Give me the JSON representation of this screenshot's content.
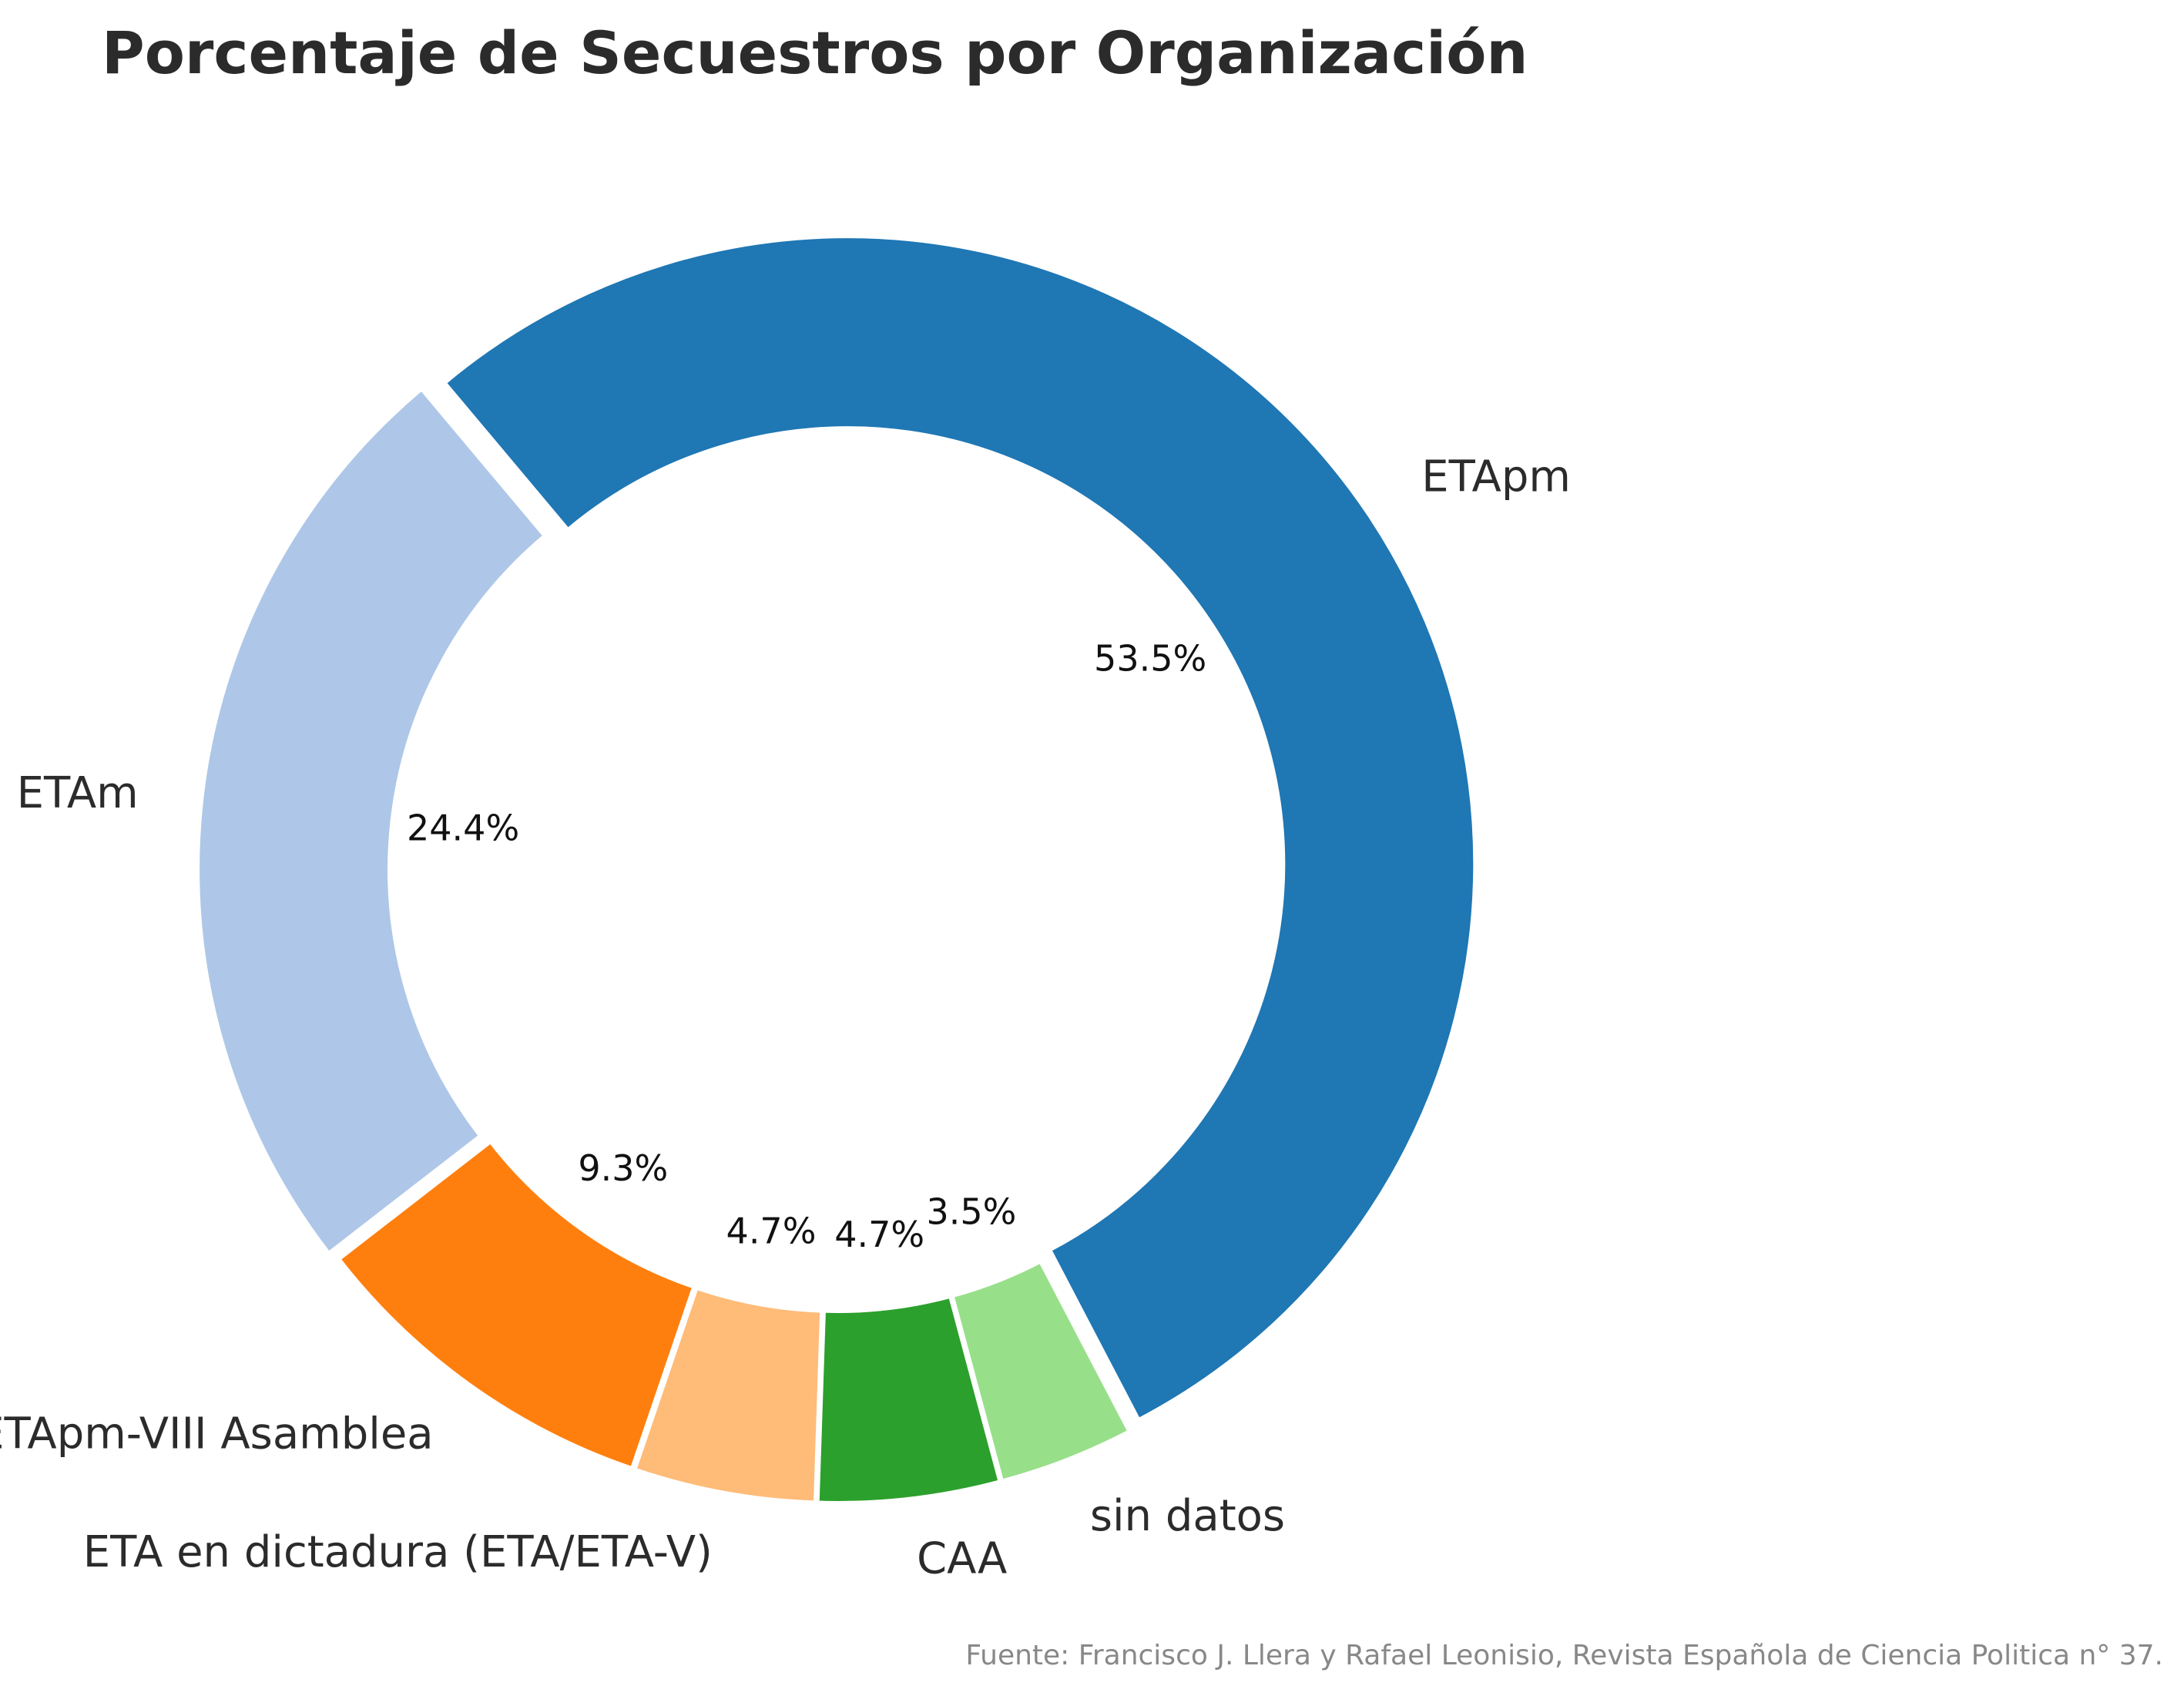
{
  "chart_data": {
    "type": "pie",
    "variant": "donut",
    "title": "Porcentaje de Secuestros por Organización",
    "source": "Fuente: Francisco J. Llera y Rafael Leonisio, Revista Española de Ciencia Politica n° 37.",
    "slices": [
      {
        "label": "ETAm",
        "value": 24.4,
        "pct_label": "24.4%",
        "color": "#aec7e8"
      },
      {
        "label": "ETApm-VIII Asamblea",
        "value": 9.3,
        "pct_label": "9.3%",
        "color": "#ff7f0e"
      },
      {
        "label": "ETA en dictadura (ETA/ETA-V)",
        "value": 4.7,
        "pct_label": "4.7%",
        "color": "#ffbb78"
      },
      {
        "label": "CAA",
        "value": 4.7,
        "pct_label": "4.7%",
        "color": "#2ca02c"
      },
      {
        "label": "sin datos",
        "value": 3.5,
        "pct_label": "3.5%",
        "color": "#98df8a"
      },
      {
        "label": "ETApm",
        "value": 53.5,
        "pct_label": "53.5%",
        "color": "#1f77b4"
      }
    ]
  }
}
